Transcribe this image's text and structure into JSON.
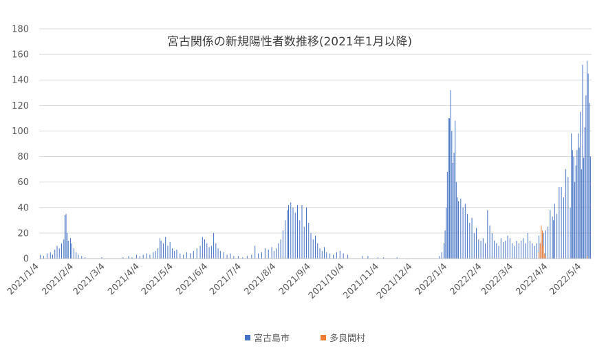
{
  "chart_data": {
    "type": "bar",
    "title": "宮古関係の新規陽性者数推移(2021年1月以降)",
    "xlabel": "",
    "ylabel": "",
    "ylim": [
      0,
      180
    ],
    "yticks": [
      "0",
      "20",
      "40",
      "60",
      "80",
      "100",
      "120",
      "140",
      "160",
      "180"
    ],
    "xticks": [
      "2021/1/4",
      "2021/2/4",
      "2021/3/4",
      "2021/4/4",
      "2021/5/4",
      "2021/6/4",
      "2021/7/4",
      "2021/8/4",
      "2021/9/4",
      "2021/10/4",
      "2021/11/4",
      "2021/12/4",
      "2022/1/4",
      "2022/2/4",
      "2022/3/4",
      "2022/4/4",
      "2022/5/4"
    ],
    "x_start": "2021/1/4",
    "x_end": "2022/5/12",
    "grid": true,
    "legend_position": "bottom",
    "series": [
      {
        "name": "宮古島市",
        "color": "#4472C4",
        "points": [
          [
            "2021/1/5",
            3
          ],
          [
            "2021/1/8",
            2
          ],
          [
            "2021/1/11",
            4
          ],
          [
            "2021/1/14",
            5
          ],
          [
            "2021/1/16",
            3
          ],
          [
            "2021/1/18",
            7
          ],
          [
            "2021/1/20",
            10
          ],
          [
            "2021/1/22",
            8
          ],
          [
            "2021/1/24",
            12
          ],
          [
            "2021/1/26",
            15
          ],
          [
            "2021/1/27",
            34
          ],
          [
            "2021/1/28",
            35
          ],
          [
            "2021/1/29",
            20
          ],
          [
            "2021/1/30",
            14
          ],
          [
            "2021/2/1",
            16
          ],
          [
            "2021/2/2",
            12
          ],
          [
            "2021/2/4",
            8
          ],
          [
            "2021/2/6",
            5
          ],
          [
            "2021/2/8",
            3
          ],
          [
            "2021/2/11",
            2
          ],
          [
            "2021/2/14",
            1
          ],
          [
            "2021/3/1",
            1
          ],
          [
            "2021/3/20",
            1
          ],
          [
            "2021/3/25",
            2
          ],
          [
            "2021/3/28",
            1
          ],
          [
            "2021/4/1",
            3
          ],
          [
            "2021/4/4",
            2
          ],
          [
            "2021/4/7",
            3
          ],
          [
            "2021/4/10",
            4
          ],
          [
            "2021/4/13",
            3
          ],
          [
            "2021/4/16",
            5
          ],
          [
            "2021/4/18",
            6
          ],
          [
            "2021/4/20",
            8
          ],
          [
            "2021/4/22",
            16
          ],
          [
            "2021/4/23",
            14
          ],
          [
            "2021/4/25",
            12
          ],
          [
            "2021/4/27",
            17
          ],
          [
            "2021/4/29",
            10
          ],
          [
            "2021/5/1",
            13
          ],
          [
            "2021/5/3",
            8
          ],
          [
            "2021/5/5",
            6
          ],
          [
            "2021/5/7",
            7
          ],
          [
            "2021/5/10",
            4
          ],
          [
            "2021/5/13",
            3
          ],
          [
            "2021/5/16",
            5
          ],
          [
            "2021/5/19",
            4
          ],
          [
            "2021/5/22",
            6
          ],
          [
            "2021/5/25",
            8
          ],
          [
            "2021/5/28",
            10
          ],
          [
            "2021/5/30",
            17
          ],
          [
            "2021/6/1",
            15
          ],
          [
            "2021/6/3",
            12
          ],
          [
            "2021/6/5",
            9
          ],
          [
            "2021/6/7",
            10
          ],
          [
            "2021/6/9",
            20
          ],
          [
            "2021/6/11",
            12
          ],
          [
            "2021/6/13",
            8
          ],
          [
            "2021/6/15",
            6
          ],
          [
            "2021/6/18",
            5
          ],
          [
            "2021/6/21",
            3
          ],
          [
            "2021/6/24",
            4
          ],
          [
            "2021/6/27",
            2
          ],
          [
            "2021/7/1",
            2
          ],
          [
            "2021/7/5",
            1
          ],
          [
            "2021/7/9",
            2
          ],
          [
            "2021/7/13",
            3
          ],
          [
            "2021/7/16",
            10
          ],
          [
            "2021/7/19",
            4
          ],
          [
            "2021/7/22",
            5
          ],
          [
            "2021/7/25",
            8
          ],
          [
            "2021/7/28",
            7
          ],
          [
            "2021/7/31",
            9
          ],
          [
            "2021/8/2",
            6
          ],
          [
            "2021/8/4",
            8
          ],
          [
            "2021/8/6",
            12
          ],
          [
            "2021/8/8",
            15
          ],
          [
            "2021/8/10",
            22
          ],
          [
            "2021/8/12",
            30
          ],
          [
            "2021/8/14",
            38
          ],
          [
            "2021/8/15",
            42
          ],
          [
            "2021/8/17",
            44
          ],
          [
            "2021/8/19",
            40
          ],
          [
            "2021/8/21",
            36
          ],
          [
            "2021/8/23",
            42
          ],
          [
            "2021/8/25",
            30
          ],
          [
            "2021/8/27",
            42
          ],
          [
            "2021/8/29",
            25
          ],
          [
            "2021/8/31",
            40
          ],
          [
            "2021/9/2",
            28
          ],
          [
            "2021/9/4",
            20
          ],
          [
            "2021/9/6",
            15
          ],
          [
            "2021/9/8",
            18
          ],
          [
            "2021/9/10",
            12
          ],
          [
            "2021/9/12",
            8
          ],
          [
            "2021/9/14",
            6
          ],
          [
            "2021/9/16",
            9
          ],
          [
            "2021/9/18",
            5
          ],
          [
            "2021/9/21",
            4
          ],
          [
            "2021/9/24",
            3
          ],
          [
            "2021/9/27",
            5
          ],
          [
            "2021/9/30",
            6
          ],
          [
            "2021/10/3",
            4
          ],
          [
            "2021/10/7",
            3
          ],
          [
            "2021/10/20",
            2
          ],
          [
            "2021/10/25",
            2
          ],
          [
            "2021/11/3",
            1
          ],
          [
            "2021/11/8",
            1
          ],
          [
            "2021/11/20",
            1
          ],
          [
            "2021/12/28",
            2
          ],
          [
            "2021/12/30",
            5
          ],
          [
            "2022/1/1",
            12
          ],
          [
            "2022/1/2",
            22
          ],
          [
            "2022/1/3",
            40
          ],
          [
            "2022/1/4",
            68
          ],
          [
            "2022/1/5",
            110
          ],
          [
            "2022/1/6",
            110
          ],
          [
            "2022/1/7",
            132
          ],
          [
            "2022/1/8",
            100
          ],
          [
            "2022/1/9",
            75
          ],
          [
            "2022/1/10",
            83
          ],
          [
            "2022/1/11",
            108
          ],
          [
            "2022/1/12",
            60
          ],
          [
            "2022/1/13",
            48
          ],
          [
            "2022/1/14",
            45
          ],
          [
            "2022/1/16",
            47
          ],
          [
            "2022/1/18",
            40
          ],
          [
            "2022/1/20",
            43
          ],
          [
            "2022/1/22",
            35
          ],
          [
            "2022/1/24",
            28
          ],
          [
            "2022/1/26",
            32
          ],
          [
            "2022/1/28",
            20
          ],
          [
            "2022/1/30",
            24
          ],
          [
            "2022/2/1",
            15
          ],
          [
            "2022/2/3",
            14
          ],
          [
            "2022/2/5",
            16
          ],
          [
            "2022/2/7",
            12
          ],
          [
            "2022/2/9",
            38
          ],
          [
            "2022/2/11",
            26
          ],
          [
            "2022/2/13",
            20
          ],
          [
            "2022/2/15",
            14
          ],
          [
            "2022/2/17",
            12
          ],
          [
            "2022/2/19",
            10
          ],
          [
            "2022/2/21",
            16
          ],
          [
            "2022/2/23",
            13
          ],
          [
            "2022/2/25",
            14
          ],
          [
            "2022/2/27",
            18
          ],
          [
            "2022/3/1",
            16
          ],
          [
            "2022/3/3",
            12
          ],
          [
            "2022/3/5",
            10
          ],
          [
            "2022/3/7",
            14
          ],
          [
            "2022/3/9",
            12
          ],
          [
            "2022/3/11",
            14
          ],
          [
            "2022/3/13",
            16
          ],
          [
            "2022/3/15",
            12
          ],
          [
            "2022/3/17",
            20
          ],
          [
            "2022/3/19",
            14
          ],
          [
            "2022/3/21",
            12
          ],
          [
            "2022/3/23",
            10
          ],
          [
            "2022/3/25",
            12
          ],
          [
            "2022/3/27",
            18
          ],
          [
            "2022/3/29",
            14
          ],
          [
            "2022/3/31",
            20
          ],
          [
            "2022/4/2",
            22
          ],
          [
            "2022/4/4",
            25
          ],
          [
            "2022/4/6",
            38
          ],
          [
            "2022/4/8",
            33
          ],
          [
            "2022/4/9",
            30
          ],
          [
            "2022/4/10",
            43
          ],
          [
            "2022/4/12",
            35
          ],
          [
            "2022/4/14",
            56
          ],
          [
            "2022/4/16",
            56
          ],
          [
            "2022/4/18",
            48
          ],
          [
            "2022/4/20",
            70
          ],
          [
            "2022/4/22",
            64
          ],
          [
            "2022/4/24",
            40
          ],
          [
            "2022/4/25",
            98
          ],
          [
            "2022/4/26",
            85
          ],
          [
            "2022/4/27",
            80
          ],
          [
            "2022/4/28",
            60
          ],
          [
            "2022/4/29",
            73
          ],
          [
            "2022/4/30",
            85
          ],
          [
            "2022/5/1",
            98
          ],
          [
            "2022/5/2",
            87
          ],
          [
            "2022/5/3",
            115
          ],
          [
            "2022/5/4",
            70
          ],
          [
            "2022/5/5",
            152
          ],
          [
            "2022/5/6",
            79
          ],
          [
            "2022/5/7",
            103
          ],
          [
            "2022/5/8",
            128
          ],
          [
            "2022/5/9",
            155
          ],
          [
            "2022/5/10",
            145
          ],
          [
            "2022/5/11",
            122
          ],
          [
            "2022/5/12",
            80
          ]
        ]
      },
      {
        "name": "多良間村",
        "color": "#ED7D31",
        "points": [
          [
            "2022/3/27",
            5
          ],
          [
            "2022/3/28",
            12
          ],
          [
            "2022/3/29",
            26
          ],
          [
            "2022/3/30",
            22
          ],
          [
            "2022/3/31",
            10
          ],
          [
            "2022/4/1",
            4
          ],
          [
            "2022/4/2",
            2
          ],
          [
            "2022/5/9",
            2
          ]
        ]
      }
    ]
  }
}
